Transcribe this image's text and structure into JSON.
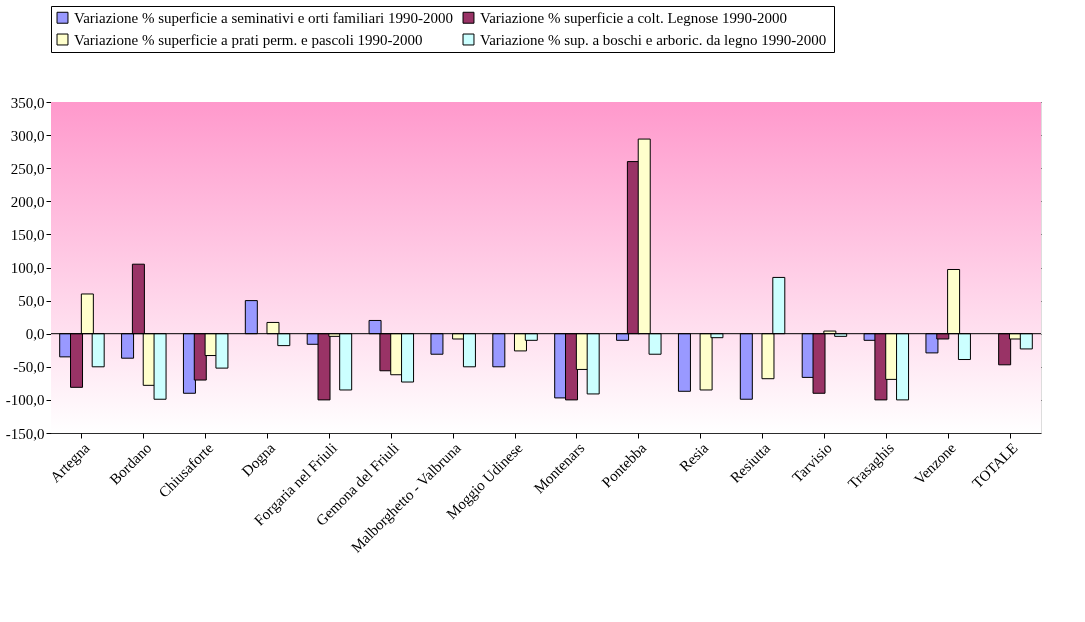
{
  "chart_data": {
    "type": "bar",
    "categories": [
      "Artegna",
      "Bordano",
      "Chiusaforte",
      "Dogna",
      "Forgaria nel Friuli",
      "Gemona del Friuli",
      "Malborghetto - Valbruna",
      "Moggio Udinese",
      "Montenars",
      "Pontebba",
      "Resia",
      "Resiutta",
      "Tarvisio",
      "Trasaghis",
      "Venzone",
      "TOTALE"
    ],
    "series": [
      {
        "name": "Variazione %  superficie a seminativi e orti familiari 1990-2000",
        "color": "#9999ff",
        "values": [
          -35,
          -37,
          -90,
          50,
          -16,
          20,
          -31,
          -50,
          -97,
          -10,
          -87,
          -99,
          -66,
          -10,
          -29,
          null
        ]
      },
      {
        "name": "Variazione %  superficie a colt. Legnose 1990-2000",
        "color": "#993366",
        "values": [
          -81,
          105,
          -70,
          null,
          -100,
          -56,
          null,
          null,
          -100,
          260,
          null,
          null,
          -90,
          -100,
          -8,
          -47
        ]
      },
      {
        "name": "Variazione %  superficie a prati perm. e pascoli 1990-2000",
        "color": "#ffffcc",
        "values": [
          60,
          -78,
          -33,
          17,
          -4,
          -62,
          -8,
          -26,
          -54,
          294,
          -85,
          -68,
          4,
          -69,
          97,
          -8
        ]
      },
      {
        "name": "Variazione %  sup. a boschi e arboric. da legno 1990-2000",
        "color": "#ccffff",
        "values": [
          -50,
          -99,
          -52,
          -18,
          -85,
          -73,
          -50,
          -10,
          -91,
          -31,
          -6,
          85,
          -4,
          -100,
          -39,
          -23
        ]
      }
    ],
    "ylim": [
      -150,
      350
    ],
    "yticks": [
      {
        "value": -150,
        "label": "-150,0"
      },
      {
        "value": -100,
        "label": "-100,0"
      },
      {
        "value": -50,
        "label": "-50,0"
      },
      {
        "value": 0,
        "label": "0,0"
      },
      {
        "value": 50,
        "label": "50,0"
      },
      {
        "value": 100,
        "label": "100,0"
      },
      {
        "value": 150,
        "label": "150,0"
      },
      {
        "value": 200,
        "label": "200,0"
      },
      {
        "value": 250,
        "label": "250,0"
      },
      {
        "value": 300,
        "label": "300,0"
      },
      {
        "value": 350,
        "label": "350,0"
      }
    ],
    "grid": "y",
    "legend": "top"
  }
}
